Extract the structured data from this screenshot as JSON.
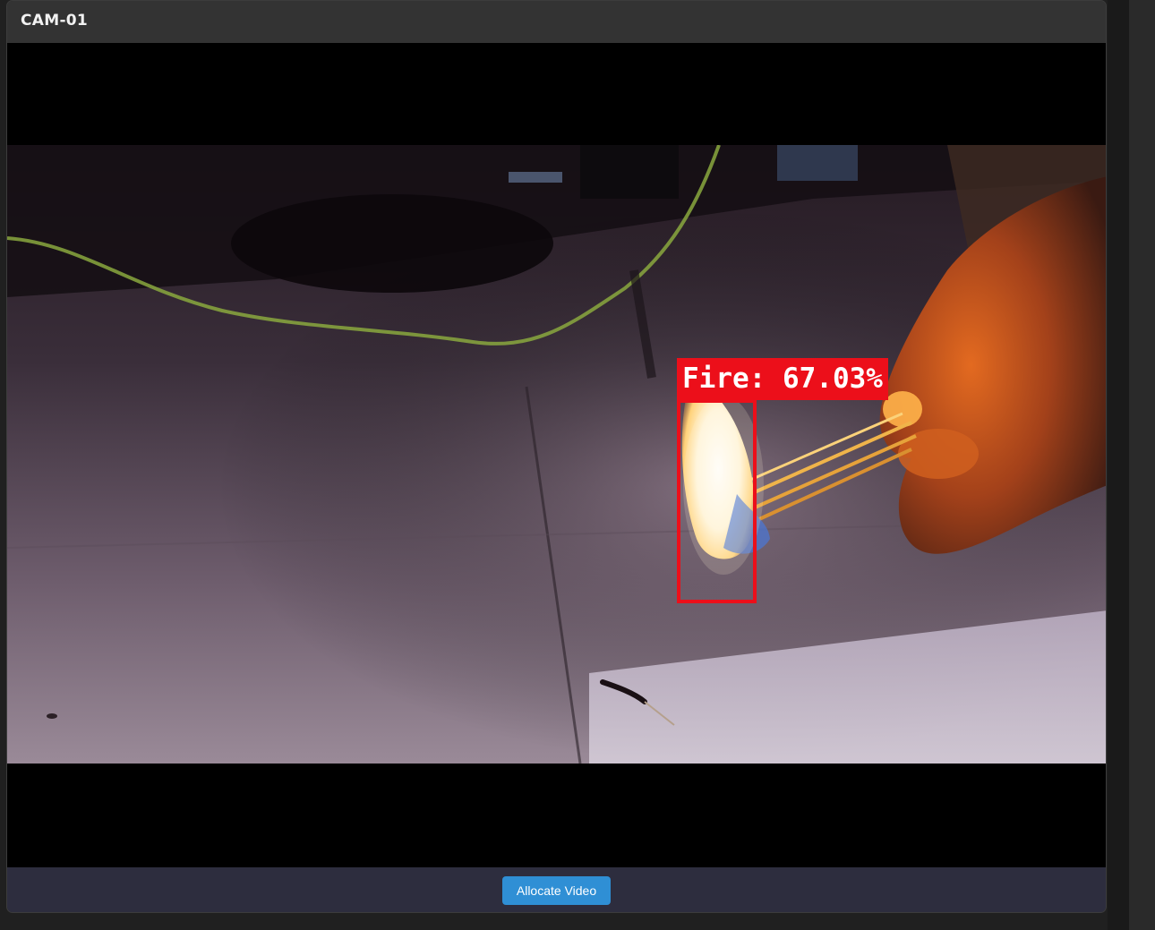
{
  "camera": {
    "title": "CAM-01"
  },
  "detection": {
    "label": "Fire: 67.03%",
    "class": "Fire",
    "confidence_percent": 67.03,
    "box_color": "#ec0f1a"
  },
  "footer": {
    "allocate_label": "Allocate Video",
    "button_color": "#2f8fd5"
  }
}
